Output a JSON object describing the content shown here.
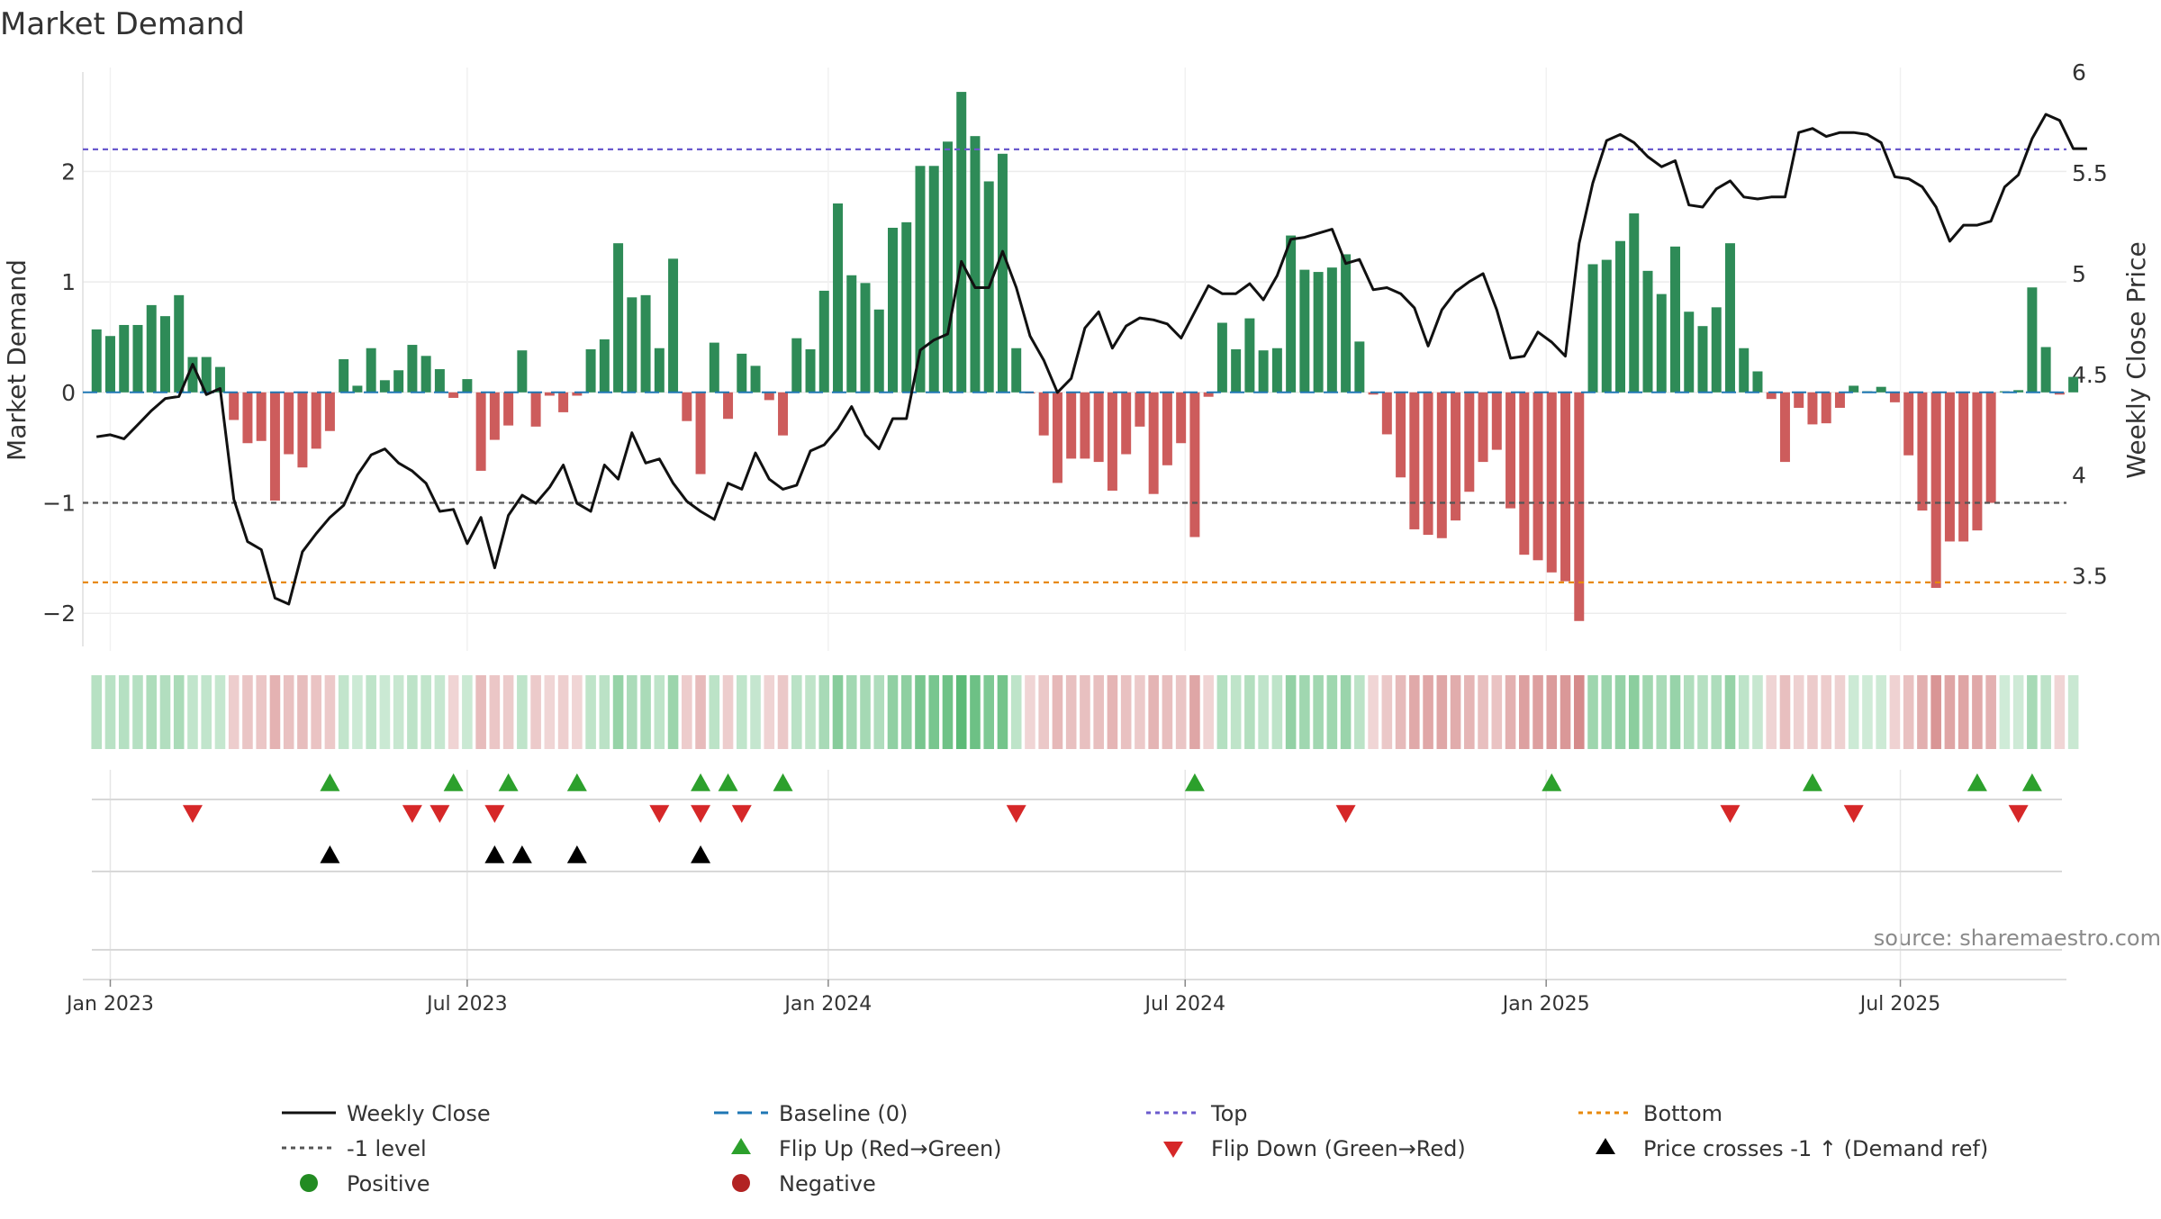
{
  "chart_data": {
    "type": "bar",
    "title": "Market Demand",
    "ylabel": "Market Demand",
    "y2label": "Weekly Close Price",
    "ylim": [
      -2.3,
      2.9
    ],
    "y2lim": [
      3.15,
      6.0
    ],
    "yticks": [
      -2,
      -1,
      0,
      1,
      2
    ],
    "y2ticks": [
      3.5,
      4,
      4.5,
      5,
      5.5,
      6
    ],
    "x_start_week": -1,
    "x_end_week": 143.5,
    "xticks": [
      {
        "label": "Jan 2023",
        "week": 1
      },
      {
        "label": "Jul 2023",
        "week": 27
      },
      {
        "label": "Jan 2024",
        "week": 53.3
      },
      {
        "label": "Jul 2024",
        "week": 79.3
      },
      {
        "label": "Jan 2025",
        "week": 105.6
      },
      {
        "label": "Jul 2025",
        "week": 131.4
      }
    ],
    "demand": [
      0.57,
      0.51,
      0.61,
      0.61,
      0.79,
      0.69,
      0.88,
      0.32,
      0.32,
      0.23,
      -0.25,
      -0.46,
      -0.44,
      -0.98,
      -0.56,
      -0.68,
      -0.51,
      -0.35,
      0.3,
      0.06,
      0.4,
      0.11,
      0.2,
      0.43,
      0.33,
      0.21,
      -0.05,
      0.12,
      -0.71,
      -0.43,
      -0.3,
      0.38,
      -0.31,
      -0.03,
      -0.18,
      -0.03,
      0.39,
      0.48,
      1.35,
      0.86,
      0.88,
      0.4,
      1.21,
      -0.26,
      -0.74,
      0.45,
      -0.24,
      0.35,
      0.24,
      -0.07,
      -0.39,
      0.49,
      0.39,
      0.92,
      1.71,
      1.06,
      0.99,
      0.75,
      1.49,
      1.54,
      2.05,
      2.05,
      2.27,
      2.72,
      2.32,
      1.91,
      2.16,
      0.4,
      -0.01,
      -0.39,
      -0.82,
      -0.6,
      -0.6,
      -0.63,
      -0.89,
      -0.56,
      -0.31,
      -0.92,
      -0.66,
      -0.46,
      -1.31,
      -0.04,
      0.63,
      0.39,
      0.67,
      0.38,
      0.4,
      1.42,
      1.11,
      1.09,
      1.13,
      1.25,
      0.46,
      -0.02,
      -0.38,
      -0.77,
      -1.24,
      -1.29,
      -1.32,
      -1.16,
      -0.9,
      -0.63,
      -0.52,
      -1.05,
      -1.47,
      -1.52,
      -1.63,
      -1.71,
      -2.07,
      1.16,
      1.2,
      1.37,
      1.62,
      1.1,
      0.89,
      1.32,
      0.73,
      0.6,
      0.77,
      1.35,
      0.4,
      0.19,
      -0.06,
      -0.63,
      -0.14,
      -0.29,
      -0.28,
      -0.14,
      0.06,
      0.01,
      0.05,
      -0.09,
      -0.57,
      -1.07,
      -1.77,
      -1.35,
      -1.35,
      -1.25,
      -1.0,
      0.01,
      0.02,
      0.95,
      0.41,
      -0.02,
      0.14
    ],
    "close": [
      4.19,
      4.2,
      4.18,
      4.25,
      4.32,
      4.38,
      4.39,
      4.55,
      4.4,
      4.43,
      3.88,
      3.67,
      3.63,
      3.39,
      3.36,
      3.62,
      3.71,
      3.79,
      3.85,
      4.0,
      4.1,
      4.13,
      4.06,
      4.02,
      3.96,
      3.82,
      3.83,
      3.66,
      3.79,
      3.54,
      3.8,
      3.9,
      3.86,
      3.94,
      4.05,
      3.86,
      3.82,
      4.05,
      3.98,
      4.21,
      4.06,
      4.08,
      3.96,
      3.87,
      3.82,
      3.78,
      3.96,
      3.93,
      4.11,
      3.98,
      3.93,
      3.95,
      4.12,
      4.15,
      4.23,
      4.34,
      4.2,
      4.13,
      4.28,
      4.28,
      4.62,
      4.67,
      4.7,
      5.06,
      4.93,
      4.93,
      5.11,
      4.93,
      4.69,
      4.57,
      4.41,
      4.48,
      4.73,
      4.81,
      4.63,
      4.74,
      4.78,
      4.77,
      4.75,
      4.68,
      4.81,
      4.94,
      4.9,
      4.9,
      4.95,
      4.87,
      4.99,
      5.17,
      5.18,
      5.2,
      5.22,
      5.05,
      5.07,
      4.92,
      4.93,
      4.9,
      4.83,
      4.64,
      4.82,
      4.91,
      4.96,
      5.0,
      4.82,
      4.58,
      4.59,
      4.71,
      4.66,
      4.59,
      5.15,
      5.45,
      5.66,
      5.69,
      5.65,
      5.58,
      5.53,
      5.56,
      5.34,
      5.33,
      5.42,
      5.46,
      5.38,
      5.37,
      5.38,
      5.38,
      5.7,
      5.72,
      5.68,
      5.7,
      5.7,
      5.69,
      5.65,
      5.48,
      5.47,
      5.43,
      5.33,
      5.16,
      5.24,
      5.24,
      5.26,
      5.43,
      5.49,
      5.67,
      5.79,
      5.76,
      5.62,
      5.62
    ],
    "levels": {
      "top": 2.2,
      "minus_one": -1,
      "bottom": -1.72,
      "baseline": 0
    },
    "heat_cells": 145,
    "flip_up_weeks": [
      17,
      26,
      30,
      35,
      44,
      46,
      50,
      80,
      106,
      125,
      137,
      141
    ],
    "flip_down_weeks": [
      7,
      23,
      25,
      29,
      41,
      44,
      47,
      67,
      91,
      119,
      128,
      140
    ],
    "price_cross_weeks": [
      17,
      29,
      31,
      35,
      44
    ],
    "legend": {
      "weekly_close": "Weekly Close",
      "baseline": "Baseline (0)",
      "top": "Top",
      "bottom": "Bottom",
      "minus_one": "-1 level",
      "flip_up": "Flip Up (Red→Green)",
      "flip_down": "Flip Down (Green→Red)",
      "price_cross": "Price crosses -1 ↑ (Demand ref)",
      "positive": "Positive",
      "negative": "Negative"
    },
    "source": "source: sharemaestro.com"
  },
  "colors": {
    "positive": "#2e8b57",
    "negative": "#cd5c5c",
    "close": "#111111",
    "baseline": "#1f77b4",
    "top": "#6a5acd",
    "bottom": "#e8890c",
    "minus_one": "#555555",
    "flip_up": "#2ca02c",
    "flip_down": "#d62728",
    "cross": "#000000",
    "positive_dot": "#228b22",
    "negative_dot": "#b22222"
  }
}
